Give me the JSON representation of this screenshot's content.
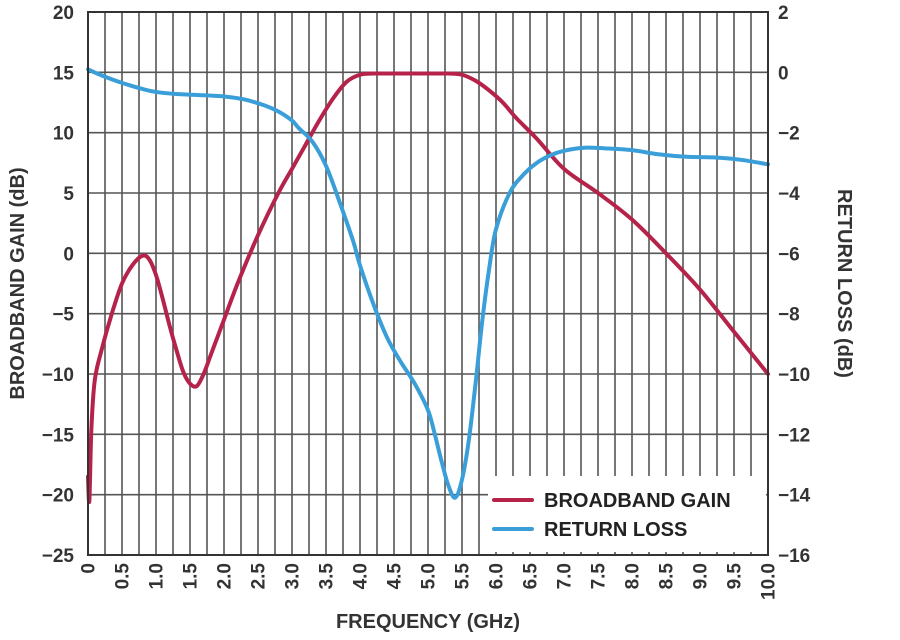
{
  "chart_data": {
    "type": "line",
    "xlabel": "FREQUENCY (GHz)",
    "ylabel_left": "BROADBAND GAIN (dB)",
    "ylabel_right": "RETURN LOSS (dB)",
    "xlim": [
      0,
      10
    ],
    "ylim_left": [
      -25,
      20
    ],
    "ylim_right": [
      -16,
      2
    ],
    "x_ticks": [
      "0",
      "0.5",
      "1.0",
      "1.5",
      "2.0",
      "2.5",
      "3.0",
      "3.5",
      "4.0",
      "4.5",
      "5.0",
      "5.5",
      "6.0",
      "6.5",
      "7.0",
      "7.5",
      "8.0",
      "8.5",
      "9.0",
      "9.5",
      "10.0"
    ],
    "y_ticks_left": [
      "20",
      "15",
      "10",
      "5",
      "0",
      "−5",
      "−10",
      "−15",
      "−20",
      "−25"
    ],
    "y_ticks_right": [
      "2",
      "0",
      "−2",
      "−4",
      "−6",
      "−8",
      "−10",
      "−12",
      "−14",
      "−16"
    ],
    "grid": true,
    "legend_position": "bottom-right",
    "series": [
      {
        "name": "BROADBAND GAIN",
        "axis": "left",
        "color": "#b5234a",
        "x": [
          0.0,
          0.02,
          0.05,
          0.1,
          0.2,
          0.35,
          0.5,
          0.65,
          0.8,
          0.9,
          1.0,
          1.1,
          1.2,
          1.3,
          1.4,
          1.5,
          1.6,
          1.7,
          1.8,
          1.9,
          2.0,
          2.2,
          2.5,
          2.8,
          3.0,
          3.2,
          3.4,
          3.6,
          3.8,
          4.0,
          4.2,
          4.5,
          5.0,
          5.3,
          5.5,
          5.7,
          5.9,
          6.1,
          6.3,
          6.6,
          7.0,
          7.5,
          8.0,
          8.5,
          9.0,
          9.5,
          10.0
        ],
        "y": [
          -18.5,
          -20.5,
          -14.5,
          -10.5,
          -8.0,
          -5.0,
          -2.5,
          -1.0,
          -0.2,
          -0.5,
          -1.8,
          -3.8,
          -6.0,
          -8.0,
          -9.8,
          -10.8,
          -11.0,
          -10.0,
          -8.5,
          -7.0,
          -5.5,
          -2.5,
          1.5,
          5.0,
          7.0,
          9.0,
          11.0,
          12.8,
          14.2,
          14.8,
          14.9,
          14.9,
          14.9,
          14.9,
          14.8,
          14.3,
          13.5,
          12.5,
          11.2,
          9.5,
          7.0,
          5.0,
          2.8,
          0.0,
          -3.0,
          -6.5,
          -10.0
        ]
      },
      {
        "name": "RETURN LOSS",
        "axis": "right",
        "color": "#3a9fd8",
        "x": [
          0.0,
          0.2,
          0.5,
          0.8,
          1.0,
          1.3,
          1.6,
          2.0,
          2.3,
          2.6,
          2.8,
          3.0,
          3.1,
          3.3,
          3.5,
          3.7,
          3.9,
          4.0,
          4.2,
          4.4,
          4.6,
          4.8,
          5.0,
          5.1,
          5.2,
          5.3,
          5.4,
          5.5,
          5.6,
          5.7,
          5.8,
          5.9,
          6.0,
          6.2,
          6.4,
          6.6,
          6.8,
          7.0,
          7.3,
          7.6,
          8.0,
          8.4,
          8.8,
          9.2,
          9.6,
          10.0
        ],
        "y": [
          0.1,
          -0.1,
          -0.35,
          -0.55,
          -0.65,
          -0.72,
          -0.75,
          -0.8,
          -0.9,
          -1.1,
          -1.3,
          -1.6,
          -1.85,
          -2.3,
          -3.1,
          -4.3,
          -5.6,
          -6.4,
          -7.7,
          -8.8,
          -9.6,
          -10.3,
          -11.2,
          -12.0,
          -12.9,
          -13.7,
          -14.1,
          -13.5,
          -12.2,
          -10.3,
          -8.2,
          -6.5,
          -5.2,
          -4.0,
          -3.4,
          -3.0,
          -2.75,
          -2.6,
          -2.5,
          -2.52,
          -2.58,
          -2.72,
          -2.8,
          -2.82,
          -2.9,
          -3.05
        ]
      }
    ]
  }
}
